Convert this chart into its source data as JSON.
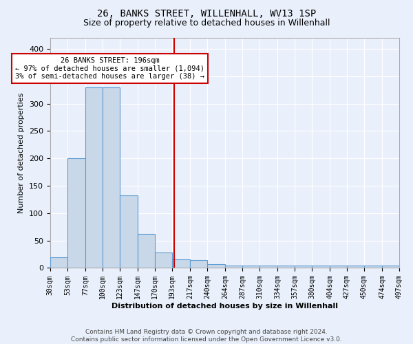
{
  "title1": "26, BANKS STREET, WILLENHALL, WV13 1SP",
  "title2": "Size of property relative to detached houses in Willenhall",
  "xlabel": "Distribution of detached houses by size in Willenhall",
  "ylabel": "Number of detached properties",
  "categories": [
    "30sqm",
    "53sqm",
    "77sqm",
    "100sqm",
    "123sqm",
    "147sqm",
    "170sqm",
    "193sqm",
    "217sqm",
    "240sqm",
    "264sqm",
    "287sqm",
    "310sqm",
    "334sqm",
    "357sqm",
    "380sqm",
    "404sqm",
    "427sqm",
    "450sqm",
    "474sqm",
    "497sqm"
  ],
  "bar_heights": [
    20,
    200,
    330,
    330,
    132,
    62,
    28,
    16,
    14,
    7,
    4,
    4,
    4,
    4,
    4,
    4,
    4,
    4,
    4,
    4
  ],
  "bar_color": "#c8d8e8",
  "bar_edge_color": "#5b9bd5",
  "vline_x": 196,
  "vline_color": "#cc0000",
  "annotation_text": "26 BANKS STREET: 196sqm\n← 97% of detached houses are smaller (1,094)\n3% of semi-detached houses are larger (38) →",
  "annotation_box_color": "#ffffff",
  "annotation_box_edge": "#cc0000",
  "footer1": "Contains HM Land Registry data © Crown copyright and database right 2024.",
  "footer2": "Contains public sector information licensed under the Open Government Licence v3.0.",
  "ylim": [
    0,
    420
  ],
  "yticks": [
    0,
    50,
    100,
    150,
    200,
    250,
    300,
    350,
    400
  ],
  "bg_color": "#eaf0fb",
  "plot_bg_color": "#eaf0fb"
}
